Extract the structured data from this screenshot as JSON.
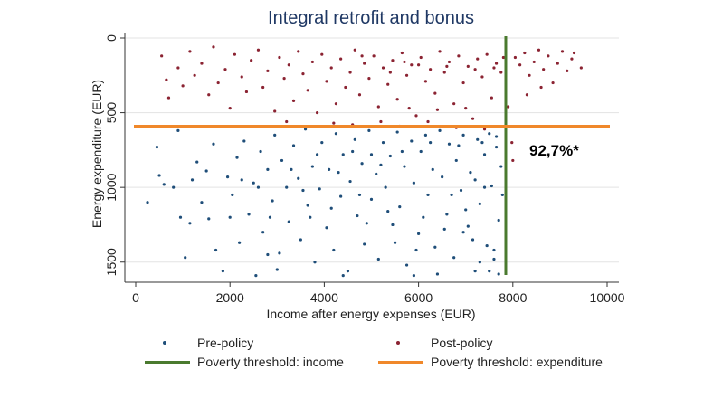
{
  "chart_data": {
    "type": "scatter",
    "title": "Integral retrofit and bonus",
    "xlabel": "Income after energy expenses (EUR)",
    "ylabel": "Energy expenditure (EUR)",
    "xlim": [
      0,
      10000
    ],
    "ylim": [
      1650,
      0
    ],
    "y_inverted": true,
    "x_ticks": [
      "0",
      "2000",
      "4000",
      "6000",
      "8000",
      "10000"
    ],
    "x_tick_values": [
      0,
      2000,
      4000,
      6000,
      8000,
      10000
    ],
    "y_ticks": [
      "0",
      "500",
      "1000",
      "1500"
    ],
    "y_tick_values": [
      0,
      500,
      1000,
      1500
    ],
    "grid": true,
    "legend_position": "bottom",
    "annotation": "92,7%*",
    "reference_lines": [
      {
        "name": "Poverty threshold: income",
        "orientation": "vertical",
        "value": 7850,
        "color": "#4a7a2e"
      },
      {
        "name": "Poverty threshold: expenditure",
        "orientation": "horizontal",
        "value": 590,
        "color": "#f0882a"
      }
    ],
    "series": [
      {
        "name": "Pre-policy",
        "color": "#1f4e79",
        "marker": "dot",
        "points": [
          [
            250,
            1100
          ],
          [
            450,
            730
          ],
          [
            500,
            920
          ],
          [
            600,
            980
          ],
          [
            800,
            1000
          ],
          [
            900,
            620
          ],
          [
            950,
            1200
          ],
          [
            1050,
            1470
          ],
          [
            1150,
            1240
          ],
          [
            1300,
            830
          ],
          [
            1400,
            1100
          ],
          [
            1500,
            890
          ],
          [
            1550,
            1210
          ],
          [
            1650,
            710
          ],
          [
            1700,
            1420
          ],
          [
            1850,
            1560
          ],
          [
            1950,
            930
          ],
          [
            2050,
            1050
          ],
          [
            2150,
            800
          ],
          [
            2200,
            1370
          ],
          [
            2300,
            690
          ],
          [
            2400,
            1180
          ],
          [
            2500,
            970
          ],
          [
            2550,
            1590
          ],
          [
            2650,
            760
          ],
          [
            2700,
            1300
          ],
          [
            2800,
            880
          ],
          [
            2900,
            1090
          ],
          [
            2950,
            650
          ],
          [
            3050,
            1440
          ],
          [
            3100,
            820
          ],
          [
            3200,
            1000
          ],
          [
            3250,
            1230
          ],
          [
            3350,
            720
          ],
          [
            3450,
            940
          ],
          [
            3500,
            1350
          ],
          [
            3600,
            610
          ],
          [
            3650,
            1120
          ],
          [
            3750,
            860
          ],
          [
            3800,
            1500
          ],
          [
            3900,
            1010
          ],
          [
            3950,
            700
          ],
          [
            4050,
            1270
          ],
          [
            4100,
            880
          ],
          [
            4200,
            1420
          ],
          [
            4250,
            640
          ],
          [
            4350,
            1060
          ],
          [
            4400,
            780
          ],
          [
            4500,
            1560
          ],
          [
            4550,
            960
          ],
          [
            4650,
            680
          ],
          [
            4700,
            1190
          ],
          [
            4800,
            840
          ],
          [
            4850,
            1380
          ],
          [
            4950,
            620
          ],
          [
            5000,
            1080
          ],
          [
            5100,
            910
          ],
          [
            5150,
            1480
          ],
          [
            5250,
            700
          ],
          [
            5300,
            1000
          ],
          [
            5400,
            790
          ],
          [
            5450,
            1250
          ],
          [
            5550,
            630
          ],
          [
            5600,
            1130
          ],
          [
            5700,
            860
          ],
          [
            5750,
            1520
          ],
          [
            5850,
            690
          ],
          [
            5900,
            970
          ],
          [
            6000,
            1310
          ],
          [
            6050,
            760
          ],
          [
            6150,
            650
          ],
          [
            6200,
            1050
          ],
          [
            6300,
            880
          ],
          [
            6350,
            1400
          ],
          [
            6450,
            620
          ],
          [
            6500,
            930
          ],
          [
            6600,
            1180
          ],
          [
            6650,
            710
          ],
          [
            6750,
            1470
          ],
          [
            6800,
            820
          ],
          [
            6900,
            1020
          ],
          [
            6950,
            650
          ],
          [
            7050,
            1260
          ],
          [
            7100,
            900
          ],
          [
            7200,
            1560
          ],
          [
            7250,
            680
          ],
          [
            7300,
            1110
          ],
          [
            7400,
            780
          ],
          [
            7450,
            1390
          ],
          [
            7500,
            640
          ],
          [
            7550,
            990
          ],
          [
            7600,
            1480
          ],
          [
            7650,
            730
          ],
          [
            7700,
            1220
          ],
          [
            7750,
            860
          ],
          [
            7780,
            1050
          ],
          [
            7300,
            1500
          ],
          [
            7500,
            1560
          ],
          [
            7700,
            1580
          ],
          [
            7600,
            1420
          ],
          [
            5900,
            1590
          ],
          [
            6400,
            1580
          ],
          [
            4400,
            1590
          ],
          [
            2000,
            1200
          ],
          [
            3000,
            1550
          ],
          [
            7150,
            1350
          ],
          [
            6950,
            1300
          ],
          [
            5500,
            1370
          ],
          [
            4900,
            1240
          ],
          [
            3700,
            1200
          ],
          [
            2800,
            1450
          ],
          [
            1200,
            950
          ],
          [
            6100,
            1200
          ],
          [
            6700,
            1050
          ],
          [
            7000,
            1150
          ],
          [
            7400,
            1000
          ],
          [
            5200,
            850
          ],
          [
            4600,
            760
          ],
          [
            3300,
            880
          ],
          [
            2600,
            1000
          ],
          [
            6250,
            700
          ],
          [
            6850,
            720
          ],
          [
            7350,
            700
          ],
          [
            7650,
            660
          ],
          [
            5650,
            760
          ],
          [
            5000,
            780
          ],
          [
            4300,
            900
          ],
          [
            3850,
            780
          ],
          [
            7200,
            950
          ],
          [
            6550,
            1280
          ],
          [
            5950,
            1420
          ],
          [
            5350,
            1160
          ],
          [
            4750,
            1050
          ],
          [
            4150,
            1140
          ],
          [
            3550,
            1020
          ],
          [
            2850,
            1200
          ],
          [
            2250,
            950
          ]
        ]
      },
      {
        "name": "Post-policy",
        "color": "#8b2332",
        "marker": "dot",
        "points": [
          [
            550,
            120
          ],
          [
            650,
            280
          ],
          [
            700,
            400
          ],
          [
            900,
            200
          ],
          [
            1000,
            320
          ],
          [
            1150,
            90
          ],
          [
            1250,
            250
          ],
          [
            1400,
            170
          ],
          [
            1550,
            380
          ],
          [
            1650,
            60
          ],
          [
            1750,
            300
          ],
          [
            1900,
            210
          ],
          [
            2000,
            470
          ],
          [
            2100,
            110
          ],
          [
            2250,
            260
          ],
          [
            2350,
            360
          ],
          [
            2450,
            150
          ],
          [
            2600,
            80
          ],
          [
            2700,
            330
          ],
          [
            2800,
            220
          ],
          [
            2950,
            490
          ],
          [
            3050,
            130
          ],
          [
            3150,
            270
          ],
          [
            3250,
            180
          ],
          [
            3350,
            420
          ],
          [
            3450,
            90
          ],
          [
            3550,
            240
          ],
          [
            3650,
            350
          ],
          [
            3750,
            160
          ],
          [
            3850,
            500
          ],
          [
            3950,
            110
          ],
          [
            4050,
            290
          ],
          [
            4150,
            200
          ],
          [
            4250,
            440
          ],
          [
            4350,
            140
          ],
          [
            4450,
            330
          ],
          [
            4550,
            230
          ],
          [
            4650,
            80
          ],
          [
            4750,
            380
          ],
          [
            4850,
            170
          ],
          [
            4950,
            270
          ],
          [
            5050,
            120
          ],
          [
            5150,
            460
          ],
          [
            5250,
            200
          ],
          [
            5350,
            310
          ],
          [
            5450,
            150
          ],
          [
            5550,
            410
          ],
          [
            5650,
            100
          ],
          [
            5750,
            250
          ],
          [
            5850,
            180
          ],
          [
            5950,
            520
          ],
          [
            6050,
            130
          ],
          [
            6150,
            290
          ],
          [
            6250,
            210
          ],
          [
            6350,
            370
          ],
          [
            6450,
            90
          ],
          [
            6550,
            230
          ],
          [
            6650,
            160
          ],
          [
            6750,
            440
          ],
          [
            6850,
            120
          ],
          [
            6950,
            300
          ],
          [
            7050,
            190
          ],
          [
            7150,
            540
          ],
          [
            7250,
            140
          ],
          [
            7350,
            260
          ],
          [
            7450,
            110
          ],
          [
            7550,
            400
          ],
          [
            7650,
            170
          ],
          [
            7750,
            230
          ],
          [
            7800,
            130
          ],
          [
            8000,
            820
          ],
          [
            8050,
            130
          ],
          [
            8150,
            180
          ],
          [
            8250,
            100
          ],
          [
            8350,
            250
          ],
          [
            8450,
            160
          ],
          [
            8550,
            80
          ],
          [
            8650,
            210
          ],
          [
            8750,
            120
          ],
          [
            8850,
            300
          ],
          [
            8950,
            170
          ],
          [
            9050,
            90
          ],
          [
            9150,
            220
          ],
          [
            9250,
            140
          ],
          [
            9450,
            200
          ],
          [
            9300,
            100
          ],
          [
            8600,
            330
          ],
          [
            8300,
            380
          ],
          [
            7900,
            460
          ],
          [
            7980,
            700
          ],
          [
            6200,
            560
          ],
          [
            5200,
            560
          ],
          [
            4200,
            570
          ],
          [
            3200,
            560
          ],
          [
            6800,
            600
          ],
          [
            7400,
            610
          ],
          [
            5600,
            590
          ],
          [
            4600,
            580
          ],
          [
            6400,
            480
          ],
          [
            5800,
            470
          ],
          [
            7000,
            470
          ],
          [
            4800,
            120
          ],
          [
            5400,
            230
          ],
          [
            6000,
            180
          ],
          [
            6600,
            190
          ],
          [
            7200,
            210
          ],
          [
            7600,
            200
          ],
          [
            5700,
            160
          ]
        ]
      }
    ]
  }
}
